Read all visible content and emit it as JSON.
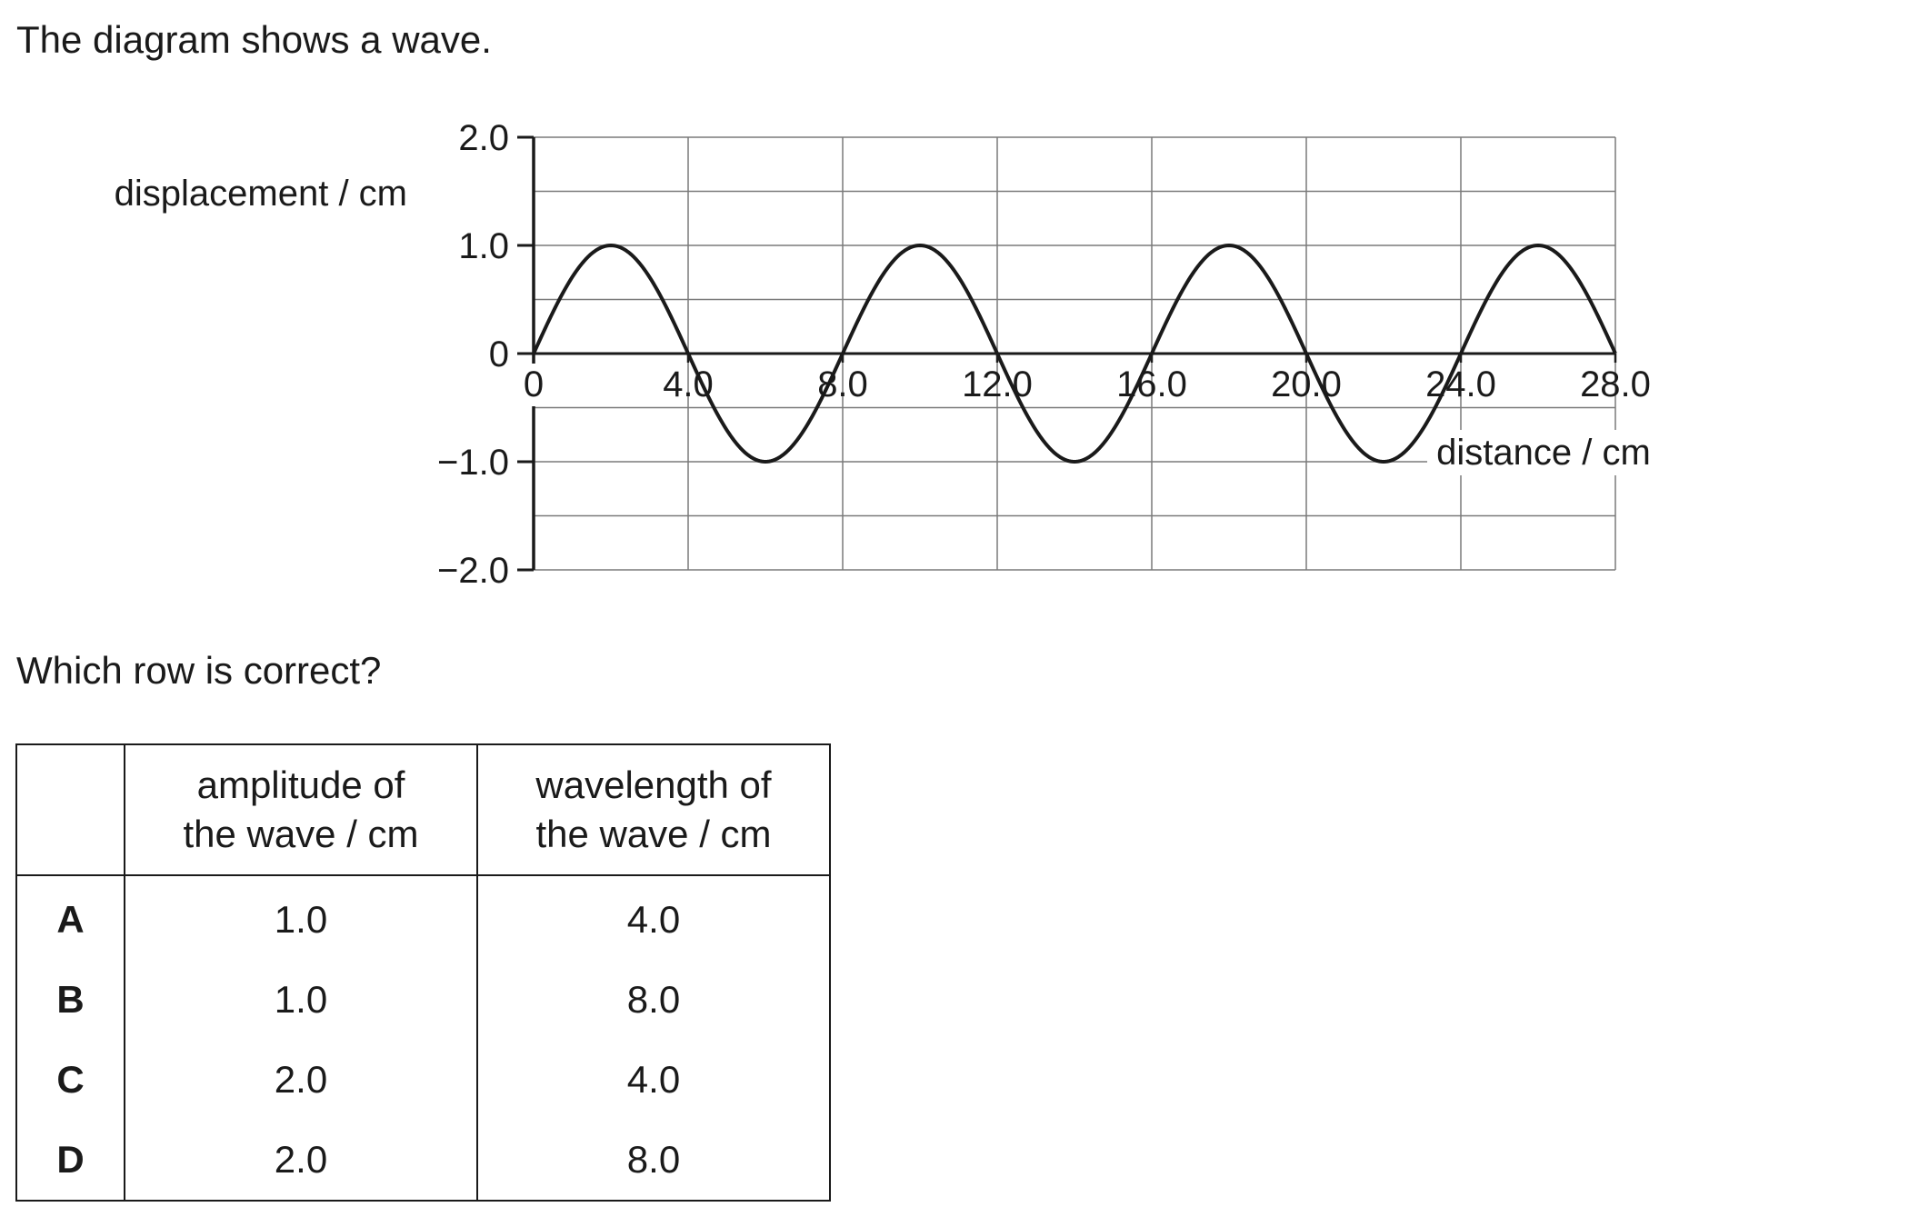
{
  "intro_text": "The diagram shows a wave.",
  "question_text": "Which row is correct?",
  "chart_data": {
    "type": "line",
    "title": "",
    "xlabel": "distance / cm",
    "ylabel": "displacement / cm",
    "xlim": [
      0,
      28
    ],
    "ylim": [
      -2,
      2
    ],
    "x_ticks": [
      0,
      4,
      8,
      12,
      16,
      20,
      24,
      28
    ],
    "x_tick_labels": [
      "0",
      "4.0",
      "8.0",
      "12.0",
      "16.0",
      "20.0",
      "24.0",
      "28.0"
    ],
    "y_ticks": [
      2,
      1,
      0,
      -1,
      -2
    ],
    "y_tick_labels": [
      "2.0",
      "1.0",
      "0",
      "−1.0",
      "−2.0"
    ],
    "grid": true,
    "series": [
      {
        "name": "wave",
        "function": "sine",
        "amplitude": 1.0,
        "wavelength": 8.0,
        "x_start": 0,
        "x_end": 28
      }
    ]
  },
  "table": {
    "headers": [
      "",
      "amplitude of\nthe wave / cm",
      "wavelength of\nthe wave / cm"
    ],
    "rows": [
      {
        "letter": "A",
        "amplitude": "1.0",
        "wavelength": "4.0"
      },
      {
        "letter": "B",
        "amplitude": "1.0",
        "wavelength": "8.0"
      },
      {
        "letter": "C",
        "amplitude": "2.0",
        "wavelength": "4.0"
      },
      {
        "letter": "D",
        "amplitude": "2.0",
        "wavelength": "8.0"
      }
    ]
  }
}
